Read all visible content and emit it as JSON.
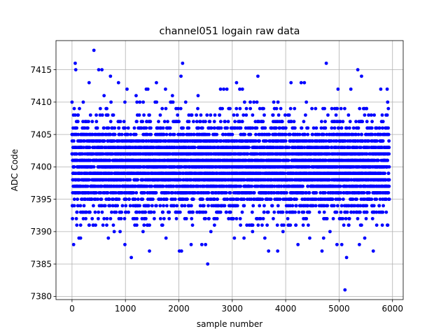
{
  "chart_data": {
    "type": "scatter",
    "title": "channel051 logain raw data",
    "xlabel": "sample number",
    "ylabel": "ADC Code",
    "xlim": [
      -300,
      6200
    ],
    "ylim": [
      7379.5,
      7419.5
    ],
    "xticks": [
      0,
      1000,
      2000,
      3000,
      4000,
      5000,
      6000
    ],
    "yticks": [
      7380,
      7385,
      7390,
      7395,
      7400,
      7405,
      7410,
      7415
    ],
    "grid": true,
    "marker_color": "#0000ff",
    "sample_count": 5940,
    "center_value": 7400,
    "series": [
      {
        "name": "",
        "dense_band_note_free": true,
        "points": [
          {
            "x": 0,
            "y": 7410
          },
          {
            "x": 30,
            "y": 7388
          },
          {
            "x": 60,
            "y": 7416
          },
          {
            "x": 70,
            "y": 7415
          },
          {
            "x": 90,
            "y": 7391
          },
          {
            "x": 130,
            "y": 7389
          },
          {
            "x": 160,
            "y": 7389
          },
          {
            "x": 210,
            "y": 7410
          },
          {
            "x": 320,
            "y": 7413
          },
          {
            "x": 410,
            "y": 7418
          },
          {
            "x": 500,
            "y": 7415
          },
          {
            "x": 560,
            "y": 7415
          },
          {
            "x": 600,
            "y": 7411
          },
          {
            "x": 680,
            "y": 7389
          },
          {
            "x": 720,
            "y": 7414
          },
          {
            "x": 790,
            "y": 7390
          },
          {
            "x": 870,
            "y": 7413
          },
          {
            "x": 900,
            "y": 7390
          },
          {
            "x": 990,
            "y": 7388
          },
          {
            "x": 1030,
            "y": 7412
          },
          {
            "x": 1110,
            "y": 7386
          },
          {
            "x": 1200,
            "y": 7411
          },
          {
            "x": 1330,
            "y": 7390
          },
          {
            "x": 1390,
            "y": 7412
          },
          {
            "x": 1420,
            "y": 7412
          },
          {
            "x": 1450,
            "y": 7387
          },
          {
            "x": 1580,
            "y": 7413
          },
          {
            "x": 1750,
            "y": 7412
          },
          {
            "x": 1760,
            "y": 7389
          },
          {
            "x": 1880,
            "y": 7411
          },
          {
            "x": 2010,
            "y": 7387
          },
          {
            "x": 2050,
            "y": 7387
          },
          {
            "x": 2040,
            "y": 7414
          },
          {
            "x": 2070,
            "y": 7416
          },
          {
            "x": 2230,
            "y": 7388
          },
          {
            "x": 2360,
            "y": 7411
          },
          {
            "x": 2430,
            "y": 7388
          },
          {
            "x": 2500,
            "y": 7388
          },
          {
            "x": 2540,
            "y": 7385
          },
          {
            "x": 2600,
            "y": 7390
          },
          {
            "x": 2780,
            "y": 7412
          },
          {
            "x": 2840,
            "y": 7412
          },
          {
            "x": 2900,
            "y": 7412
          },
          {
            "x": 3040,
            "y": 7389
          },
          {
            "x": 3080,
            "y": 7413
          },
          {
            "x": 3140,
            "y": 7412
          },
          {
            "x": 3190,
            "y": 7412
          },
          {
            "x": 3220,
            "y": 7389
          },
          {
            "x": 3380,
            "y": 7390
          },
          {
            "x": 3480,
            "y": 7414
          },
          {
            "x": 3610,
            "y": 7389
          },
          {
            "x": 3680,
            "y": 7387
          },
          {
            "x": 3850,
            "y": 7387
          },
          {
            "x": 3950,
            "y": 7390
          },
          {
            "x": 4100,
            "y": 7413
          },
          {
            "x": 4230,
            "y": 7388
          },
          {
            "x": 4290,
            "y": 7413
          },
          {
            "x": 4350,
            "y": 7413
          },
          {
            "x": 4450,
            "y": 7389
          },
          {
            "x": 4680,
            "y": 7387
          },
          {
            "x": 4710,
            "y": 7389
          },
          {
            "x": 4760,
            "y": 7416
          },
          {
            "x": 4830,
            "y": 7390
          },
          {
            "x": 4960,
            "y": 7388
          },
          {
            "x": 4980,
            "y": 7412
          },
          {
            "x": 5050,
            "y": 7388
          },
          {
            "x": 5110,
            "y": 7381
          },
          {
            "x": 5140,
            "y": 7386
          },
          {
            "x": 5220,
            "y": 7412
          },
          {
            "x": 5350,
            "y": 7415
          },
          {
            "x": 5380,
            "y": 7388
          },
          {
            "x": 5420,
            "y": 7414
          },
          {
            "x": 5480,
            "y": 7389
          },
          {
            "x": 5640,
            "y": 7387
          },
          {
            "x": 5780,
            "y": 7412
          },
          {
            "x": 5900,
            "y": 7412
          }
        ]
      }
    ]
  }
}
